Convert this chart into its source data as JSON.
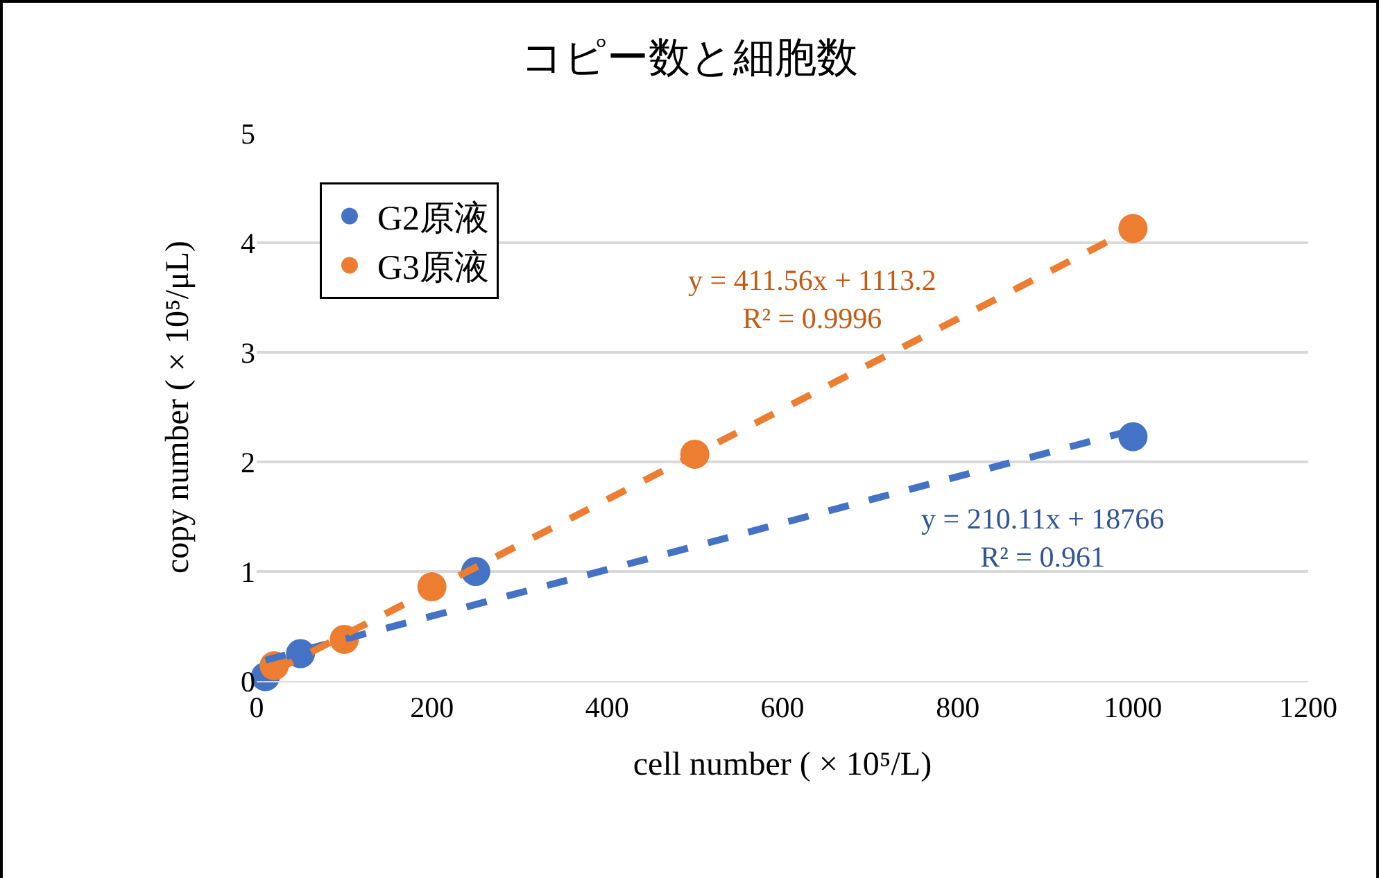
{
  "chart_data": {
    "type": "scatter",
    "title": "コピー数と細胞数",
    "xlabel": "cell number ( × 10⁵/L)",
    "ylabel": "copy number ( × 10⁵/μL)",
    "xlim": [
      0,
      1200
    ],
    "xticks": [
      0,
      200,
      400,
      600,
      800,
      1000,
      1200
    ],
    "ylim": [
      0,
      5
    ],
    "yticks": [
      0,
      1,
      2,
      3,
      4,
      5
    ],
    "grid": "y",
    "legend": "top left",
    "marker": "circle",
    "series": [
      {
        "name": "G2原液",
        "color": "#4472c4",
        "x": [
          10,
          50,
          250,
          1000
        ],
        "values": [
          0.04,
          0.25,
          1.0,
          2.23
        ]
      },
      {
        "name": "G3原液",
        "color": "#ed7d31",
        "x": [
          20,
          100,
          200,
          500,
          1000
        ],
        "values": [
          0.14,
          0.38,
          0.86,
          2.07,
          4.13
        ]
      },
      {
        "type": "line",
        "color": "#4472c4",
        "line_style": "dashed",
        "marker": "none",
        "x": [
          10,
          1000
        ],
        "values": [
          0.19,
          2.29
        ]
      },
      {
        "type": "line",
        "color": "#ed7d31",
        "line_style": "dashed",
        "marker": "none",
        "x": [
          20,
          1000
        ],
        "values": [
          0.09,
          4.13
        ]
      }
    ],
    "annotations": [
      "y = 411.56x + 1113.2\nR² = 0.9996",
      "y = 210.11x + 18766\nR² = 0.961"
    ]
  }
}
